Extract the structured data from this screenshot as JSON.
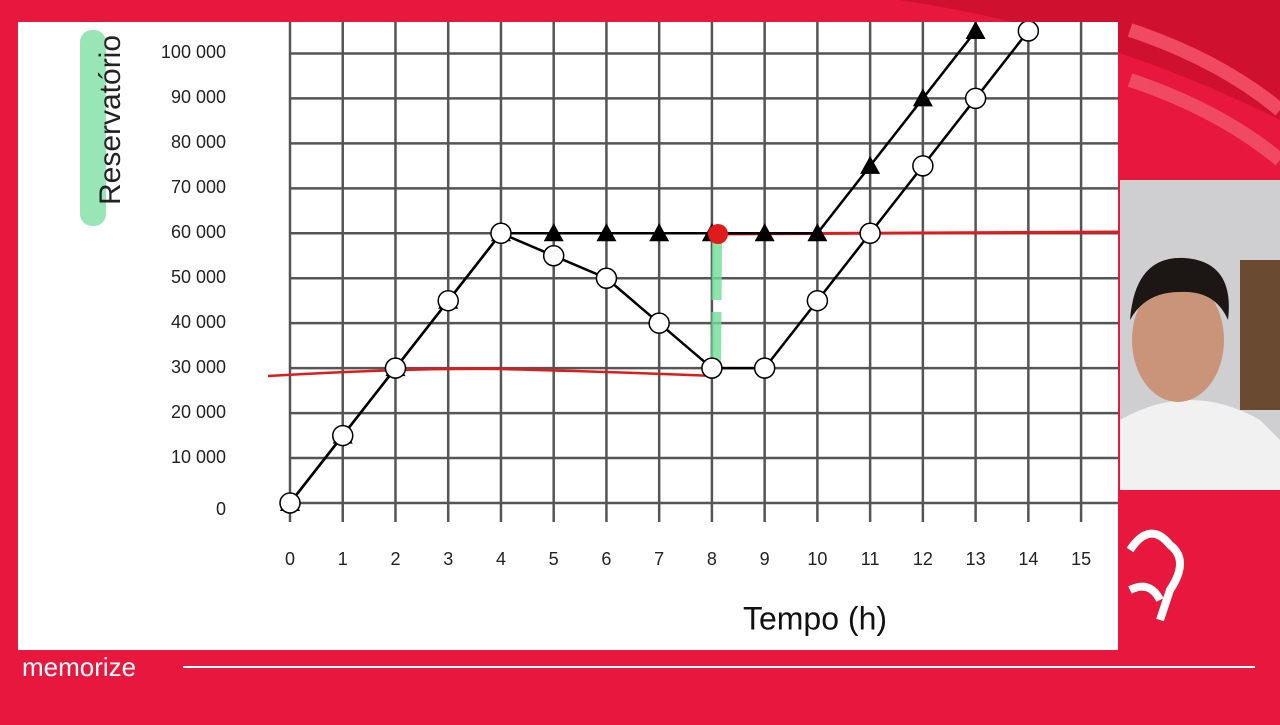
{
  "brand": "memorize",
  "chart_data": {
    "type": "line",
    "y_label": "Reservatório",
    "x_label": "Tempo (h)",
    "x": [
      0,
      1,
      2,
      3,
      4,
      5,
      6,
      7,
      8,
      9,
      10,
      11,
      12,
      13,
      14
    ],
    "series": [
      {
        "marker": "triangle",
        "color": "#000000",
        "values": [
          0,
          15000,
          30000,
          45000,
          60000,
          60000,
          60000,
          60000,
          60000,
          60000,
          60000,
          75000,
          90000,
          105000,
          null
        ]
      },
      {
        "marker": "circle",
        "color": "#000000",
        "values": [
          0,
          15000,
          30000,
          45000,
          60000,
          55000,
          50000,
          40000,
          30000,
          30000,
          45000,
          60000,
          75000,
          90000,
          105000
        ]
      }
    ],
    "xlim": [
      0,
      15.7
    ],
    "xticks": [
      0,
      1,
      2,
      3,
      4,
      5,
      6,
      7,
      8,
      9,
      10,
      11,
      12,
      13,
      14,
      15
    ],
    "ylim": [
      0,
      107000
    ],
    "yticks": [
      0,
      {
        "value": 10000,
        "label": "10 000"
      },
      {
        "value": 20000,
        "label": "20 000"
      },
      {
        "value": 30000,
        "label": "30 000"
      },
      {
        "value": 40000,
        "label": "40 000"
      },
      {
        "value": 50000,
        "label": "50 000"
      },
      {
        "value": 60000,
        "label": "60 000"
      },
      {
        "value": 70000,
        "label": "70 000"
      },
      {
        "value": 80000,
        "label": "80 000"
      },
      {
        "value": 90000,
        "label": "90 000"
      },
      {
        "value": 100000,
        "label": "100 000"
      }
    ],
    "grid": true
  }
}
